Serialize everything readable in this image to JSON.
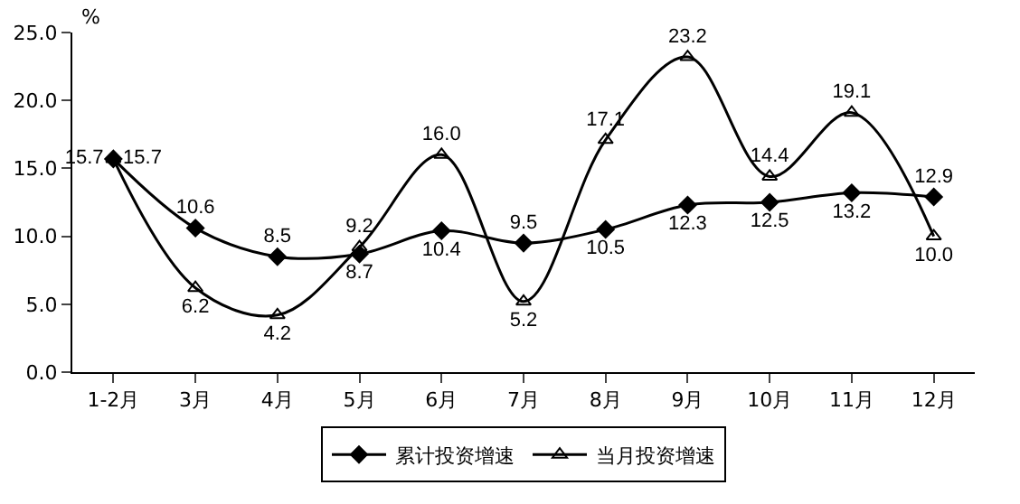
{
  "chart_data": {
    "type": "line",
    "ylabel": "%",
    "categories": [
      "1-2月",
      "3月",
      "4月",
      "5月",
      "6月",
      "7月",
      "8月",
      "9月",
      "10月",
      "11月",
      "12月"
    ],
    "series": [
      {
        "name": "累计投资增速",
        "color": "#000000",
        "marker": "diamond",
        "values": [
          15.7,
          10.6,
          8.5,
          8.7,
          10.4,
          9.5,
          10.5,
          12.3,
          12.5,
          13.2,
          12.9
        ],
        "value_labels": [
          "15.7",
          "10.6",
          "8.5",
          "8.7",
          "10.4",
          "9.5",
          "10.5",
          "12.3",
          "12.5",
          "13.2",
          "12.9"
        ]
      },
      {
        "name": "当月投资增速",
        "color": "#000000",
        "marker": "triangle",
        "values": [
          15.7,
          6.2,
          4.2,
          9.2,
          16.0,
          5.2,
          17.1,
          23.2,
          14.4,
          19.1,
          10.0
        ],
        "value_labels": [
          "15.7",
          "6.2",
          "4.2",
          "9.2",
          "16.0",
          "5.2",
          "17.1",
          "23.2",
          "14.4",
          "19.1",
          "10.0"
        ]
      }
    ],
    "ylim": [
      0,
      25
    ],
    "yticks": [
      {
        "value": 0,
        "label": "0.0"
      },
      {
        "value": 5,
        "label": "5.0"
      },
      {
        "value": 10,
        "label": "10.0"
      },
      {
        "value": 15,
        "label": "15.0"
      },
      {
        "value": 20,
        "label": "20.0"
      },
      {
        "value": 25,
        "label": "25.0"
      }
    ],
    "grid": false,
    "legend": "bottom",
    "line_style": "solid"
  }
}
